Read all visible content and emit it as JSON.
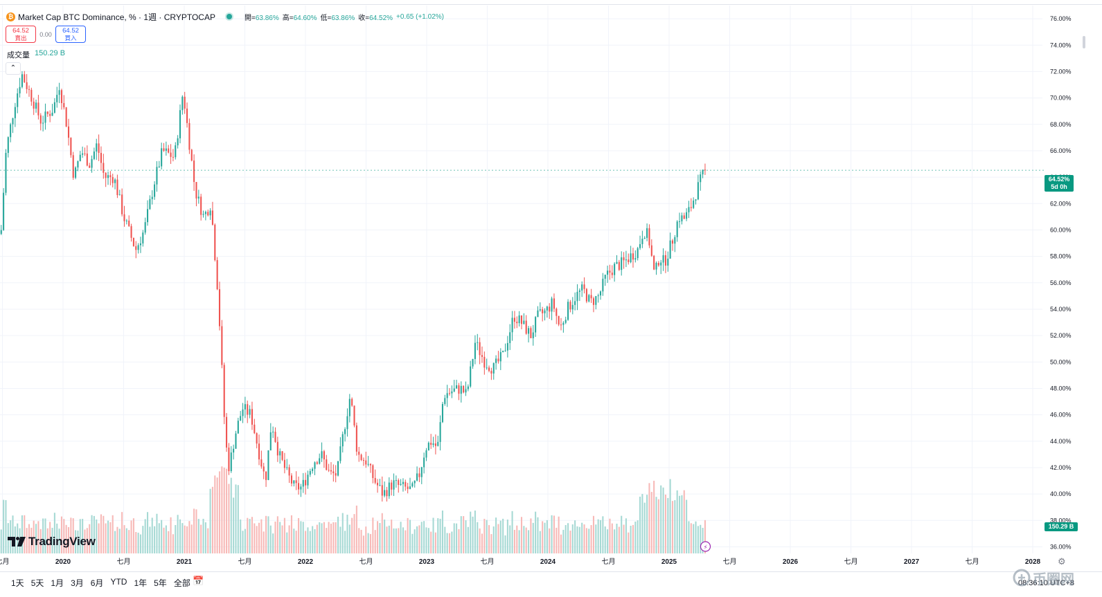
{
  "header": {
    "symbol_icon": "bitcoin-icon",
    "symbol_glyph": "₿",
    "title": "Market Cap BTC Dominance, % · 1週 · CRYPTOCAP",
    "open_label": "開=",
    "open_value": "63.86%",
    "high_label": "高=",
    "high_value": "64.60%",
    "low_label": "低=",
    "low_value": "63.86%",
    "close_label": "收=",
    "close_value": "64.52%",
    "change": "+0.65 (+1.02%)"
  },
  "trade": {
    "sell_price": "64.52",
    "sell_label": "賣出",
    "spread": "0.00",
    "buy_price": "64.52",
    "buy_label": "買入"
  },
  "volume": {
    "label": "成交量",
    "value": "150.29 B"
  },
  "price_tag": {
    "value": "64.52%",
    "countdown": "5d 0h"
  },
  "volume_tag": "150.29 B",
  "logo_text": "TradingView",
  "ranges": [
    "1天",
    "5天",
    "1月",
    "3月",
    "6月",
    "YTD",
    "1年",
    "5年",
    "全部"
  ],
  "clock": "08:36:10 UTC+8",
  "watermark": "币圈网",
  "colors": {
    "up": "#26a69a",
    "down": "#ef5350",
    "vol_up": "#a6d9d4",
    "vol_down": "#f7b9b7",
    "grid": "#f0f3fa"
  },
  "chart_data": {
    "type": "candlestick",
    "title": "Market Cap BTC Dominance, %",
    "interval": "1 week",
    "y_axis": {
      "unit": "%",
      "range": [
        35.5,
        77
      ],
      "ticks": [
        "76.00%",
        "74.00%",
        "72.00%",
        "70.00%",
        "68.00%",
        "66.00%",
        "64.00%",
        "62.00%",
        "60.00%",
        "58.00%",
        "56.00%",
        "54.00%",
        "52.00%",
        "50.00%",
        "48.00%",
        "46.00%",
        "44.00%",
        "42.00%",
        "40.00%",
        "38.00%",
        "36.00%"
      ]
    },
    "x_axis": {
      "ticks": [
        "七月",
        "2020",
        "七月",
        "2021",
        "七月",
        "2022",
        "七月",
        "2023",
        "七月",
        "2024",
        "七月",
        "2025",
        "七月",
        "2026",
        "七月",
        "2027",
        "七月",
        "2028"
      ],
      "tick_dates": [
        2019.5,
        2020.0,
        2020.5,
        2021.0,
        2021.5,
        2022.0,
        2022.5,
        2023.0,
        2023.5,
        2024.0,
        2024.5,
        2025.0,
        2025.5,
        2026.0,
        2026.5,
        2027.0,
        2027.5,
        2028.0
      ]
    },
    "x_range": [
      2019.48,
      2028.08
    ],
    "close_series_knots": [
      {
        "t": 2019.49,
        "v": 60.0
      },
      {
        "t": 2019.53,
        "v": 66.0
      },
      {
        "t": 2019.6,
        "v": 69.5
      },
      {
        "t": 2019.66,
        "v": 71.8
      },
      {
        "t": 2019.73,
        "v": 70.3
      },
      {
        "t": 2019.82,
        "v": 68.2
      },
      {
        "t": 2019.92,
        "v": 69.2
      },
      {
        "t": 2019.97,
        "v": 71.0
      },
      {
        "t": 2020.03,
        "v": 68.0
      },
      {
        "t": 2020.09,
        "v": 64.0
      },
      {
        "t": 2020.15,
        "v": 66.0
      },
      {
        "t": 2020.22,
        "v": 65.0
      },
      {
        "t": 2020.28,
        "v": 66.5
      },
      {
        "t": 2020.34,
        "v": 64.0
      },
      {
        "t": 2020.42,
        "v": 64.0
      },
      {
        "t": 2020.5,
        "v": 61.0
      },
      {
        "t": 2020.6,
        "v": 58.5
      },
      {
        "t": 2020.67,
        "v": 60.0
      },
      {
        "t": 2020.75,
        "v": 63.5
      },
      {
        "t": 2020.82,
        "v": 66.0
      },
      {
        "t": 2020.92,
        "v": 65.5
      },
      {
        "t": 2020.99,
        "v": 70.5
      },
      {
        "t": 2021.03,
        "v": 67.5
      },
      {
        "t": 2021.09,
        "v": 63.0
      },
      {
        "t": 2021.16,
        "v": 61.0
      },
      {
        "t": 2021.22,
        "v": 62.0
      },
      {
        "t": 2021.28,
        "v": 55.0
      },
      {
        "t": 2021.34,
        "v": 44.0
      },
      {
        "t": 2021.37,
        "v": 42.0
      },
      {
        "t": 2021.42,
        "v": 44.5
      },
      {
        "t": 2021.48,
        "v": 46.5
      },
      {
        "t": 2021.55,
        "v": 46.0
      },
      {
        "t": 2021.62,
        "v": 43.0
      },
      {
        "t": 2021.67,
        "v": 41.0
      },
      {
        "t": 2021.72,
        "v": 45.5
      },
      {
        "t": 2021.78,
        "v": 43.0
      },
      {
        "t": 2021.85,
        "v": 41.5
      },
      {
        "t": 2021.91,
        "v": 40.5
      },
      {
        "t": 2021.97,
        "v": 40.5
      },
      {
        "t": 2022.02,
        "v": 41.5
      },
      {
        "t": 2022.07,
        "v": 42.5
      },
      {
        "t": 2022.13,
        "v": 43.0
      },
      {
        "t": 2022.2,
        "v": 41.5
      },
      {
        "t": 2022.26,
        "v": 41.5
      },
      {
        "t": 2022.32,
        "v": 45.0
      },
      {
        "t": 2022.37,
        "v": 47.5
      },
      {
        "t": 2022.43,
        "v": 43.0
      },
      {
        "t": 2022.5,
        "v": 42.5
      },
      {
        "t": 2022.57,
        "v": 41.0
      },
      {
        "t": 2022.64,
        "v": 40.0
      },
      {
        "t": 2022.72,
        "v": 40.8
      },
      {
        "t": 2022.8,
        "v": 40.5
      },
      {
        "t": 2022.88,
        "v": 40.3
      },
      {
        "t": 2022.94,
        "v": 41.5
      },
      {
        "t": 2022.99,
        "v": 43.5
      },
      {
        "t": 2023.04,
        "v": 44.0
      },
      {
        "t": 2023.09,
        "v": 43.5
      },
      {
        "t": 2023.14,
        "v": 47.5
      },
      {
        "t": 2023.21,
        "v": 47.8
      },
      {
        "t": 2023.28,
        "v": 48.0
      },
      {
        "t": 2023.33,
        "v": 47.5
      },
      {
        "t": 2023.4,
        "v": 51.5
      },
      {
        "t": 2023.48,
        "v": 50.0
      },
      {
        "t": 2023.55,
        "v": 49.5
      },
      {
        "t": 2023.63,
        "v": 50.5
      },
      {
        "t": 2023.72,
        "v": 53.5
      },
      {
        "t": 2023.78,
        "v": 53.0
      },
      {
        "t": 2023.86,
        "v": 52.0
      },
      {
        "t": 2023.92,
        "v": 53.5
      },
      {
        "t": 2023.98,
        "v": 53.8
      },
      {
        "t": 2024.04,
        "v": 54.5
      },
      {
        "t": 2024.1,
        "v": 52.5
      },
      {
        "t": 2024.16,
        "v": 54.0
      },
      {
        "t": 2024.23,
        "v": 55.0
      },
      {
        "t": 2024.29,
        "v": 55.5
      },
      {
        "t": 2024.35,
        "v": 54.5
      },
      {
        "t": 2024.42,
        "v": 55.0
      },
      {
        "t": 2024.48,
        "v": 56.5
      },
      {
        "t": 2024.55,
        "v": 57.2
      },
      {
        "t": 2024.62,
        "v": 57.5
      },
      {
        "t": 2024.68,
        "v": 58.0
      },
      {
        "t": 2024.74,
        "v": 58.5
      },
      {
        "t": 2024.79,
        "v": 60.0
      },
      {
        "t": 2024.83,
        "v": 59.5
      },
      {
        "t": 2024.88,
        "v": 56.5
      },
      {
        "t": 2024.92,
        "v": 58.0
      },
      {
        "t": 2024.96,
        "v": 57.5
      },
      {
        "t": 2025.02,
        "v": 59.0
      },
      {
        "t": 2025.08,
        "v": 61.0
      },
      {
        "t": 2025.12,
        "v": 60.8
      },
      {
        "t": 2025.17,
        "v": 61.5
      },
      {
        "t": 2025.22,
        "v": 62.8
      },
      {
        "t": 2025.27,
        "v": 64.0
      },
      {
        "t": 2025.3,
        "v": 64.52
      }
    ],
    "volume": {
      "unit": "B",
      "current": 150.29,
      "max_shown": 450
    }
  }
}
